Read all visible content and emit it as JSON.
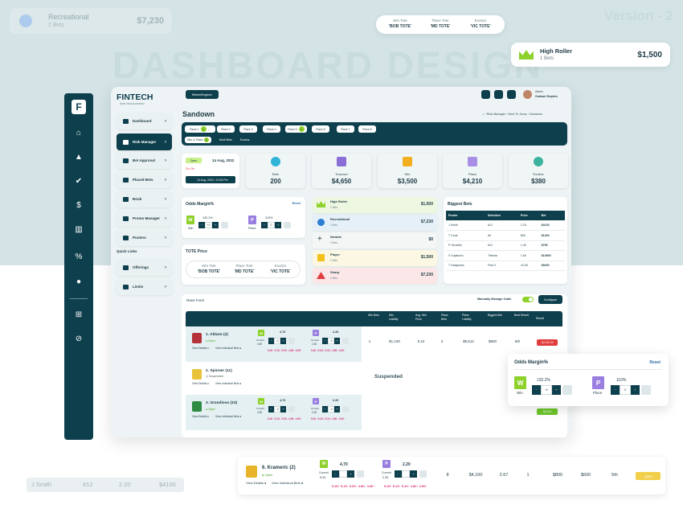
{
  "watermark": "DASHBOARD DESIGN",
  "version": "Version - 2",
  "float_recreational": {
    "name": "Recreational",
    "sub": "2 Bets",
    "value": "$7,230"
  },
  "float_tote": [
    {
      "label": "Win Tote",
      "value": "'BOB TOTE'"
    },
    {
      "label": "Place Tote",
      "value": "'MD TOTE'"
    },
    {
      "label": "Exotics",
      "value": "'VIC TOTE'"
    }
  ],
  "float_high_roller": {
    "name": "High Roller",
    "sub": "1 Bets",
    "value": "$1,500"
  },
  "brand": {
    "name": "FINTECH",
    "tagline": "DATA VISUALIZATION"
  },
  "nav": [
    {
      "label": "Dashboard"
    },
    {
      "label": "Risk Manager",
      "active": true
    },
    {
      "label": "Bet Approval"
    },
    {
      "label": "Placed Bets"
    },
    {
      "label": "Book"
    },
    {
      "label": "Promo Manager"
    },
    {
      "label": "Punters"
    }
  ],
  "quick_links_title": "Quick Links",
  "quick_links": [
    {
      "label": "Offerings"
    },
    {
      "label": "Limits"
    }
  ],
  "header": {
    "location": "BetseeKingdom",
    "user_role": "Admin",
    "user_name": "Graham Stephen"
  },
  "page_title": "Sandown",
  "breadcrumb": {
    "a": "Risk Manager",
    "b": "Next To Jump",
    "c": "Sandown"
  },
  "race_tabs": [
    {
      "label": "Race 1",
      "badge": "2"
    },
    {
      "label": "Race 2"
    },
    {
      "label": "Race 3"
    },
    {
      "label": "Race 4"
    },
    {
      "label": "Race 5",
      "badge": "2"
    },
    {
      "label": "Race 6"
    },
    {
      "label": "Race 7"
    },
    {
      "label": "Race 8"
    }
  ],
  "bet_types": [
    {
      "label": "Win & Place",
      "badge": "2"
    },
    {
      "label": "Multi Bets"
    },
    {
      "label": "Exotics"
    }
  ],
  "race_info": {
    "status": "Open",
    "date": "14 Aug, 2022",
    "onoff": "On: On",
    "date2": "14 Aug, 2022 / 12:30 Pm"
  },
  "stats": [
    {
      "label": "Bets",
      "value": "200",
      "color": "#2fb4d8"
    },
    {
      "label": "Turnover",
      "value": "$4,650",
      "color": "#8a6fd8"
    },
    {
      "label": "Win",
      "value": "$3,500",
      "color": "#f2b021"
    },
    {
      "label": "Place",
      "value": "$4,210",
      "color": "#a88fe5"
    },
    {
      "label": "Exotics",
      "value": "$380",
      "color": "#3bb39f"
    }
  ],
  "odds_margin": {
    "title": "Odds Margin%",
    "reset": "Reset",
    "win_pct": "132.2%",
    "win_label": "Win",
    "win_val": "+2",
    "place_pct": "110%",
    "place_label": "Place",
    "place_val": "0"
  },
  "tote_price": {
    "title": "TOTE Price",
    "items": [
      {
        "label": "Win Tote",
        "value": "'BOB TOTE'"
      },
      {
        "label": "Place Tote",
        "value": "'MD TOTE'"
      },
      {
        "label": "Exotics",
        "value": "'VIC TOTE'"
      }
    ]
  },
  "bettor_types": [
    {
      "name": "High Roller",
      "sub": "1 Bets",
      "value": "$1,500",
      "color": "#eef7e1"
    },
    {
      "name": "Recreational",
      "sub": "2 Bets",
      "value": "$7,230",
      "color": "#e6f0f8"
    },
    {
      "name": "Newbie",
      "sub": "0 Bets",
      "value": "$0",
      "color": "#f4f6f6"
    },
    {
      "name": "Player",
      "sub": "1 Bets",
      "value": "$1,500",
      "color": "#fbf7e2"
    },
    {
      "name": "Sharp",
      "sub": "2 Bets",
      "value": "$7,230",
      "color": "#fbe7e7"
    }
  ],
  "biggest_bets": {
    "title": "Biggest Bets",
    "headers": [
      "Punter",
      "Selection",
      "Price",
      "Bet"
    ],
    "rows": [
      [
        "J Smith",
        "#12",
        "2.20",
        "$4100"
      ],
      [
        "T Cook",
        "#6",
        "$90",
        "$1400"
      ],
      [
        "P Versellis",
        "#12",
        "1.40",
        "$750"
      ],
      [
        "S Vujakovic",
        "Trifecta",
        "1.60",
        "$14900"
      ],
      [
        "T Hargraves",
        "First 3",
        "10.00",
        "$9200"
      ]
    ]
  },
  "race_form": {
    "title": "Race Form",
    "manual_label": "Manually Manage Odds",
    "configure": "Configure",
    "headers": [
      "Win Bets",
      "Win Liability",
      "Avg. Win Price",
      "Place Bets",
      "Place Liability",
      "Biggest Bet",
      "Best Result",
      "Result"
    ]
  },
  "runners": [
    {
      "name": "1. Ablaze (3)",
      "status": "Open",
      "view": "View Details",
      "viewbets": "View Individual Bets",
      "win": "4.70",
      "place": "2.20",
      "current": "Current",
      "cur_win": "4.90",
      "cur_place": "2.30",
      "stepw": "-2",
      "stepp": "-2",
      "prices": "5.40↑ 5.10↓ 5.00↓ 4.80↓ 4.90↑",
      "pprices": "5.40↑ 5.20↓ 5.10↓ 4.80↓ 4.90↑",
      "win_bets": "1",
      "win_liab": "$1,100",
      "avg": "5.10",
      "place_bets": "3",
      "place_liab": "$9,512",
      "biggest": "$800",
      "best": "6th",
      "result": "-$2,412.00"
    },
    {
      "name": "2. Spinner (11)",
      "status": "Suspended",
      "view": "View Details",
      "viewbets": "View Individual Bets",
      "suspended": "Suspended"
    },
    {
      "name": "3. Grandioso (10)",
      "status": "Open",
      "view": "View Details",
      "viewbets": "View Individual Bets",
      "win": "4.70",
      "place": "2.20",
      "current": "Current",
      "cur_win": "4.90",
      "cur_place": "2.30",
      "stepw": "-2",
      "stepp": "-2",
      "prices": "5.40↑ 5.10↓ 5.00↓ 4.80↓ 4.90↑",
      "pprices": "5.40↑ 5.20↓ 5.10↓ 4.80↓ 4.90↑",
      "result": "$3,410"
    }
  ],
  "bottom_runner": {
    "name": "6. Krameric (2)",
    "status": "Open",
    "view": "View Details",
    "viewbets": "View Individual Bets",
    "win": "4.70",
    "place": "2.20",
    "current": "Current",
    "cur_win": "5.40",
    "cur_place": "2.30",
    "prices": "5.40↑ 5.10↓ 5.00↓ 4.80↓ 4.90↑",
    "pprices": "5.40↑ 5.20↓ 5.10↓ 4.80↓ 4.90↑",
    "win_bets": "8",
    "win_liab": "$4,100",
    "avg": "2.67",
    "place_bets": "1",
    "place_liab": "$800",
    "biggest": "$600",
    "best": "5th",
    "result": "-$250"
  },
  "ghost_row": [
    "J Smith",
    "#12",
    "2.20",
    "$4100"
  ]
}
